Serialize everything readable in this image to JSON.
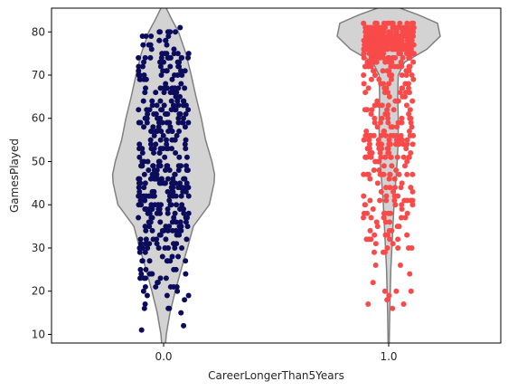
{
  "chart_data": {
    "type": "violin+strip",
    "xlabel": "CareerLongerThan5Years",
    "ylabel": "GamesPlayed",
    "ylim": [
      8,
      85.5
    ],
    "yticks": [
      10,
      20,
      30,
      40,
      50,
      60,
      70,
      80
    ],
    "categories": [
      "0.0",
      "1.0"
    ],
    "grid": false,
    "legend": "none",
    "violin_color": "#d3d3d3",
    "violin_edge_color": "#808080",
    "series": [
      {
        "category": "0.0",
        "point_color": "#0c0c5c",
        "n_points": 420,
        "games_played_range": [
          11,
          82
        ],
        "distribution_peak": 47,
        "violin_density": [
          {
            "y": 5,
            "d": 0.02
          },
          {
            "y": 10,
            "d": 0.05
          },
          {
            "y": 15,
            "d": 0.12
          },
          {
            "y": 20,
            "d": 0.22
          },
          {
            "y": 25,
            "d": 0.33
          },
          {
            "y": 30,
            "d": 0.45
          },
          {
            "y": 35,
            "d": 0.56
          },
          {
            "y": 40,
            "d": 0.86
          },
          {
            "y": 45,
            "d": 0.95
          },
          {
            "y": 47,
            "d": 0.96
          },
          {
            "y": 50,
            "d": 0.91
          },
          {
            "y": 55,
            "d": 0.79
          },
          {
            "y": 60,
            "d": 0.71
          },
          {
            "y": 65,
            "d": 0.61
          },
          {
            "y": 70,
            "d": 0.52
          },
          {
            "y": 75,
            "d": 0.42
          },
          {
            "y": 80,
            "d": 0.28
          },
          {
            "y": 83,
            "d": 0.15
          },
          {
            "y": 86,
            "d": 0.03
          }
        ]
      },
      {
        "category": "1.0",
        "point_color": "#f94a4a",
        "n_points": 560,
        "games_played_range": [
          16,
          82
        ],
        "distribution_peak": 79,
        "violin_density": [
          {
            "y": 8,
            "d": 0.01
          },
          {
            "y": 15,
            "d": 0.02
          },
          {
            "y": 20,
            "d": 0.03
          },
          {
            "y": 25,
            "d": 0.04
          },
          {
            "y": 30,
            "d": 0.06
          },
          {
            "y": 35,
            "d": 0.08
          },
          {
            "y": 40,
            "d": 0.1
          },
          {
            "y": 45,
            "d": 0.13
          },
          {
            "y": 50,
            "d": 0.16
          },
          {
            "y": 55,
            "d": 0.18
          },
          {
            "y": 60,
            "d": 0.18
          },
          {
            "y": 65,
            "d": 0.17
          },
          {
            "y": 70,
            "d": 0.18
          },
          {
            "y": 73,
            "d": 0.3
          },
          {
            "y": 76,
            "d": 0.72
          },
          {
            "y": 79,
            "d": 0.97
          },
          {
            "y": 82,
            "d": 0.92
          },
          {
            "y": 84,
            "d": 0.55
          },
          {
            "y": 86,
            "d": 0.1
          }
        ]
      }
    ]
  }
}
